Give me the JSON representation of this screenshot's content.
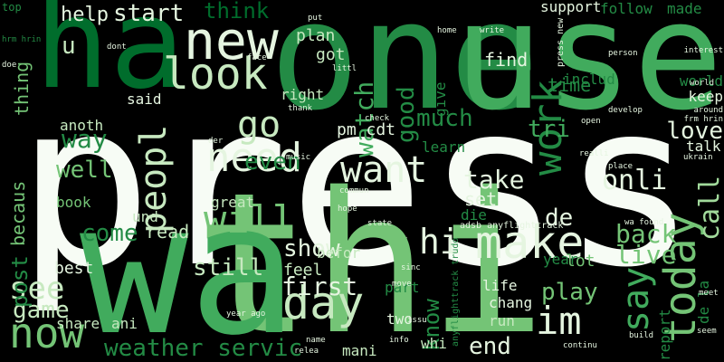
{
  "palette": {
    "background": "#000000",
    "white": "#f7fcf5",
    "pale": "#e5f5e0",
    "light": "#c7e9c0",
    "mid_light": "#a1d99b",
    "mid": "#74c476",
    "med": "#41ab5d",
    "dark": "#238b45",
    "deep": "#006d2c",
    "deepest": "#00441b"
  },
  "words": [
    {
      "text": "press",
      "size": "xl",
      "color": "white"
    },
    {
      "text": "thi",
      "size": "xl",
      "color": "mid"
    },
    {
      "text": "wa",
      "size": "xl",
      "color": "med"
    },
    {
      "text": "one",
      "size": "xl",
      "color": "dark"
    },
    {
      "text": "use",
      "size": "xl",
      "color": "med"
    },
    {
      "text": "ha",
      "size": "xl",
      "color": "deep"
    },
    {
      "text": "new",
      "size": "l",
      "color": "pale"
    },
    {
      "text": "look",
      "size": "l",
      "color": "light"
    },
    {
      "text": "make",
      "size": "l",
      "color": "pale"
    },
    {
      "text": "need",
      "size": "l",
      "color": "pale"
    },
    {
      "text": "want",
      "size": "l",
      "color": "pale"
    },
    {
      "text": "work",
      "size": "l",
      "color": "dark"
    },
    {
      "text": "today",
      "size": "l",
      "color": "mid"
    },
    {
      "text": "im",
      "size": "l",
      "color": "pale"
    },
    {
      "text": "day",
      "size": "l",
      "color": "light"
    },
    {
      "text": "hi",
      "size": "l",
      "color": "pale"
    },
    {
      "text": "go",
      "size": "l",
      "color": "light"
    },
    {
      "text": "will",
      "size": "l",
      "color": "mid"
    },
    {
      "text": "peopl",
      "size": "l",
      "color": "light"
    },
    {
      "text": "say",
      "size": "l",
      "color": "med"
    },
    {
      "text": "now",
      "size": "l",
      "color": "mid"
    },
    {
      "text": "see",
      "size": "m",
      "color": "light"
    },
    {
      "text": "call",
      "size": "m",
      "color": "mid_light"
    },
    {
      "text": "onli",
      "size": "m",
      "color": "pale"
    },
    {
      "text": "take",
      "size": "m",
      "color": "pale"
    },
    {
      "text": "live",
      "size": "m",
      "color": "mid"
    },
    {
      "text": "back",
      "size": "m",
      "color": "mid"
    },
    {
      "text": "first",
      "size": "m",
      "color": "pale"
    },
    {
      "text": "show",
      "size": "m",
      "color": "pale"
    },
    {
      "text": "still",
      "size": "m",
      "color": "light"
    },
    {
      "text": "come",
      "size": "m",
      "color": "dark"
    },
    {
      "text": "weather servic",
      "size": "m",
      "color": "dark"
    },
    {
      "text": "play",
      "size": "m",
      "color": "mid"
    },
    {
      "text": "end",
      "size": "m",
      "color": "pale"
    },
    {
      "text": "know",
      "size": "m",
      "color": "dark"
    },
    {
      "text": "de",
      "size": "m",
      "color": "pale"
    },
    {
      "text": "even",
      "size": "m",
      "color": "dark"
    },
    {
      "text": "well",
      "size": "m",
      "color": "mid"
    },
    {
      "text": "way",
      "size": "m",
      "color": "dark"
    },
    {
      "text": "tri",
      "size": "m",
      "color": "med"
    },
    {
      "text": "love",
      "size": "m",
      "color": "pale"
    },
    {
      "text": "game",
      "size": "m",
      "color": "light"
    },
    {
      "text": "watch",
      "size": "m",
      "color": "med"
    },
    {
      "text": "good",
      "size": "m",
      "color": "dark"
    },
    {
      "text": "much",
      "size": "m",
      "color": "dark"
    },
    {
      "text": "post",
      "size": "m",
      "color": "dark"
    },
    {
      "text": "start",
      "size": "m",
      "color": "pale"
    },
    {
      "text": "help",
      "size": "m",
      "color": "pale"
    },
    {
      "text": "think",
      "size": "m",
      "color": "deep"
    },
    {
      "text": "u",
      "size": "m",
      "color": "light"
    },
    {
      "text": "thing",
      "size": "s",
      "color": "mid"
    },
    {
      "text": "becaus",
      "size": "s",
      "color": "mid"
    },
    {
      "text": "find",
      "size": "s",
      "color": "pale"
    },
    {
      "text": "time",
      "size": "s",
      "color": "dark"
    },
    {
      "text": "plan",
      "size": "s",
      "color": "light"
    },
    {
      "text": "got",
      "size": "s",
      "color": "light"
    },
    {
      "text": "pm cdt",
      "size": "s",
      "color": "pale"
    },
    {
      "text": "set",
      "size": "s",
      "color": "pale"
    },
    {
      "text": "read",
      "size": "s",
      "color": "light"
    },
    {
      "text": "feel",
      "size": "s",
      "color": "light"
    },
    {
      "text": "lot",
      "size": "s",
      "color": "mid"
    },
    {
      "text": "book",
      "size": "s",
      "color": "mid"
    },
    {
      "text": "best",
      "size": "s",
      "color": "pale"
    },
    {
      "text": "share",
      "size": "s",
      "color": "light"
    },
    {
      "text": "ani",
      "size": "s",
      "color": "light"
    },
    {
      "text": "two",
      "size": "s",
      "color": "pale"
    },
    {
      "text": "life",
      "size": "s",
      "color": "pale"
    },
    {
      "text": "chang",
      "size": "s",
      "color": "pale"
    },
    {
      "text": "run",
      "size": "s",
      "color": "light"
    },
    {
      "text": "whi",
      "size": "s",
      "color": "light"
    },
    {
      "text": "mani",
      "size": "s",
      "color": "light"
    },
    {
      "text": "part",
      "size": "s",
      "color": "dark"
    },
    {
      "text": "und",
      "size": "s",
      "color": "light"
    },
    {
      "text": "great",
      "size": "s",
      "color": "light"
    },
    {
      "text": "befor",
      "size": "s",
      "color": "light"
    },
    {
      "text": "anoth",
      "size": "s",
      "color": "light"
    },
    {
      "text": "right",
      "size": "s",
      "color": "light"
    },
    {
      "text": "said",
      "size": "s",
      "color": "pale"
    },
    {
      "text": "learn",
      "size": "s",
      "color": "dark"
    },
    {
      "text": "talk",
      "size": "s",
      "color": "pale"
    },
    {
      "text": "keep",
      "size": "s",
      "color": "pale"
    },
    {
      "text": "world",
      "size": "s",
      "color": "dark"
    },
    {
      "text": "includ",
      "size": "s",
      "color": "dark"
    },
    {
      "text": "support",
      "size": "s",
      "color": "pale"
    },
    {
      "text": "follow",
      "size": "s",
      "color": "dark"
    },
    {
      "text": "made",
      "size": "s",
      "color": "dark"
    },
    {
      "text": "give",
      "size": "s",
      "color": "dark"
    },
    {
      "text": "report",
      "size": "s",
      "color": "dark"
    },
    {
      "text": "year",
      "size": "s",
      "color": "dark"
    },
    {
      "text": "die",
      "size": "s",
      "color": "dark"
    },
    {
      "text": "de la",
      "size": "s",
      "color": "dark"
    },
    {
      "text": "press new",
      "size": "xs",
      "color": "pale"
    },
    {
      "text": "anyflighttrack trudo",
      "size": "xs",
      "color": "dark"
    },
    {
      "text": "adsb anyflighttrack",
      "size": "xs",
      "color": "pale"
    },
    {
      "text": "put",
      "size": "xs",
      "color": "pale"
    },
    {
      "text": "write",
      "size": "xs",
      "color": "pale"
    },
    {
      "text": "dont",
      "size": "xs",
      "color": "pale"
    },
    {
      "text": "face",
      "size": "xs",
      "color": "pale"
    },
    {
      "text": "littl",
      "size": "xs",
      "color": "pale"
    },
    {
      "text": "thank",
      "size": "xs",
      "color": "pale"
    },
    {
      "text": "music",
      "size": "xs",
      "color": "pale"
    },
    {
      "text": "check",
      "size": "xs",
      "color": "pale"
    },
    {
      "text": "hope",
      "size": "xs",
      "color": "pale"
    },
    {
      "text": "state",
      "size": "xs",
      "color": "pale"
    },
    {
      "text": "move",
      "size": "xs",
      "color": "pale"
    },
    {
      "text": "year ago",
      "size": "xs",
      "color": "pale"
    },
    {
      "text": "relea",
      "size": "xs",
      "color": "pale"
    },
    {
      "text": "info",
      "size": "xs",
      "color": "pale"
    },
    {
      "text": "issu",
      "size": "xs",
      "color": "pale"
    },
    {
      "text": "sinc",
      "size": "xs",
      "color": "pale"
    },
    {
      "text": "build",
      "size": "xs",
      "color": "pale"
    },
    {
      "text": "continu",
      "size": "xs",
      "color": "pale"
    },
    {
      "text": "seem",
      "size": "xs",
      "color": "pale"
    },
    {
      "text": "meet",
      "size": "xs",
      "color": "pale"
    },
    {
      "text": "place",
      "size": "xs",
      "color": "pale"
    },
    {
      "text": "realli",
      "size": "xs",
      "color": "pale"
    },
    {
      "text": "open",
      "size": "xs",
      "color": "pale"
    },
    {
      "text": "develop",
      "size": "xs",
      "color": "pale"
    },
    {
      "text": "interest",
      "size": "xs",
      "color": "pale"
    },
    {
      "text": "person",
      "size": "xs",
      "color": "pale"
    },
    {
      "text": "home",
      "size": "xs",
      "color": "pale"
    },
    {
      "text": "around",
      "size": "xs",
      "color": "pale"
    },
    {
      "text": "ukrain",
      "size": "xs",
      "color": "pale"
    },
    {
      "text": "frm hrin",
      "size": "xs",
      "color": "pale"
    },
    {
      "text": "commun",
      "size": "xs",
      "color": "pale"
    },
    {
      "text": "name",
      "size": "xs",
      "color": "pale"
    },
    {
      "text": "der",
      "size": "xs",
      "color": "pale"
    },
    {
      "text": "doe",
      "size": "xs",
      "color": "pale"
    },
    {
      "text": "top",
      "size": "xs",
      "color": "dark"
    },
    {
      "text": "hrm hrin",
      "size": "xs",
      "color": "dark"
    },
    {
      "text": "world",
      "size": "xs",
      "color": "pale"
    },
    {
      "text": "wa found",
      "size": "xs",
      "color": "pale"
    }
  ]
}
